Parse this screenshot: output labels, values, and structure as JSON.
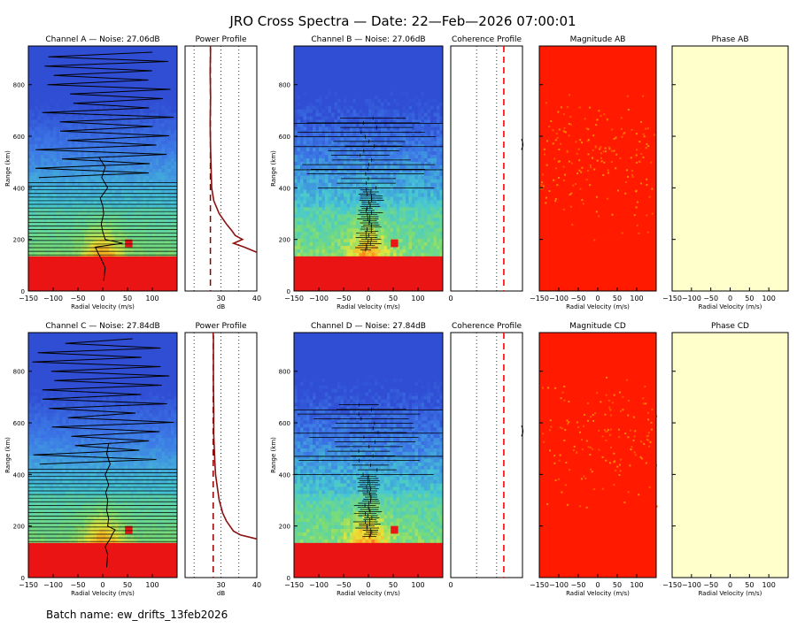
{
  "main_title": "JRO Cross Spectra — Date: 22—Feb—2026 07:00:01",
  "batch_name": "Batch name: ew_drifts_13feb2026",
  "colors": {
    "noise_line": "#8b0000",
    "profile": "#8b1010",
    "red": "#ff0000",
    "phase_bg": "#ffffcc"
  },
  "chart_data": [
    {
      "id": "spec_a",
      "type": "heatmap",
      "title": "Channel A — Noise: 27.06dB",
      "xlabel": "Radial Velocity (m/s)",
      "ylabel": "Range (km)",
      "xlim": [
        -150,
        150
      ],
      "ylim": [
        0,
        950
      ],
      "xticks": [
        "−150",
        "−100",
        "−50",
        "0",
        "50",
        "100"
      ],
      "yticks": [
        "0",
        "200",
        "400",
        "600",
        "800"
      ],
      "drift_line": {
        "range": [
          40,
          90,
          120,
          150,
          170,
          185,
          200,
          230,
          260,
          300,
          330,
          360,
          400,
          440,
          480,
          520
        ],
        "velocity": [
          2,
          5,
          -2,
          -10,
          -15,
          40,
          5,
          0,
          -3,
          2,
          0,
          -5,
          10,
          -2,
          5,
          -8
        ]
      }
    },
    {
      "id": "pow_a",
      "type": "line",
      "title": "Power Profile",
      "xlabel": "dB",
      "xlim": [
        20,
        40
      ],
      "ylim": [
        0,
        950
      ],
      "xticks": [
        "30",
        "40"
      ],
      "noise_level_db": 27.06,
      "profile": {
        "range": [
          150,
          170,
          185,
          200,
          215,
          235,
          260,
          300,
          350,
          400,
          450,
          550,
          650,
          750,
          850,
          940
        ],
        "db": [
          40,
          36.5,
          33.5,
          36,
          34,
          33,
          31.5,
          29.5,
          28,
          27.4,
          27.3,
          27.1,
          27.0,
          27.1,
          27.0,
          27.1
        ]
      }
    },
    {
      "id": "spec_b",
      "type": "heatmap",
      "title": "Channel B — Noise: 27.06dB",
      "xlabel": "Radial Velocity (m/s)",
      "ylabel": "Range (km)",
      "xlim": [
        -150,
        150
      ],
      "ylim": [
        0,
        950
      ],
      "xticks": [
        "−150",
        "−100",
        "−50",
        "0",
        "50",
        "100"
      ],
      "yticks": [
        "0",
        "200",
        "400",
        "600",
        "800"
      ]
    },
    {
      "id": "coh_ab",
      "type": "line",
      "title": "Coherence Profile",
      "xticks": [
        "0"
      ],
      "xlim": [
        0,
        1
      ],
      "ylim": [
        0,
        950
      ]
    },
    {
      "id": "mag_ab",
      "type": "heatmap",
      "title": "Magnitude AB",
      "xlabel": "Radial Velocity (m/s)",
      "xlim": [
        -150,
        150
      ],
      "ylim": [
        0,
        950
      ],
      "xticks": [
        "−150",
        "−100",
        "−50",
        "0",
        "50",
        "100"
      ]
    },
    {
      "id": "phase_ab",
      "type": "heatmap",
      "title": "Phase AB",
      "xlabel": "Radial Velocity (m/s)",
      "xlim": [
        -150,
        150
      ],
      "ylim": [
        0,
        950
      ],
      "xticks": [
        "−150",
        "−100",
        "−50",
        "0",
        "50",
        "100"
      ]
    },
    {
      "id": "spec_c",
      "type": "heatmap",
      "title": "Channel C — Noise: 27.84dB",
      "xlabel": "Radial Velocity (m/s)",
      "ylabel": "Range (km)",
      "xlim": [
        -150,
        150
      ],
      "ylim": [
        0,
        950
      ],
      "xticks": [
        "−150",
        "−100",
        "−50",
        "0",
        "50",
        "100"
      ],
      "yticks": [
        "0",
        "200",
        "400",
        "600",
        "800"
      ],
      "drift_line": {
        "range": [
          40,
          90,
          120,
          150,
          170,
          185,
          200,
          230,
          260,
          300,
          330,
          360,
          400,
          440,
          480,
          520
        ],
        "velocity": [
          8,
          10,
          5,
          15,
          20,
          25,
          10,
          12,
          8,
          10,
          6,
          12,
          5,
          15,
          8,
          12
        ]
      }
    },
    {
      "id": "pow_c",
      "type": "line",
      "title": "Power Profile",
      "xlabel": "dB",
      "xlim": [
        20,
        40
      ],
      "ylim": [
        0,
        950
      ],
      "xticks": [
        "30",
        "40"
      ],
      "noise_level_db": 27.84,
      "profile": {
        "range": [
          150,
          165,
          180,
          200,
          220,
          250,
          300,
          350,
          400,
          450,
          550,
          650,
          750,
          850,
          940
        ],
        "db": [
          40,
          35.5,
          33.5,
          32.5,
          31.5,
          30.5,
          29.5,
          29.0,
          28.5,
          28.3,
          28.0,
          28.0,
          27.9,
          27.9,
          27.9
        ]
      }
    },
    {
      "id": "spec_d",
      "type": "heatmap",
      "title": "Channel D — Noise: 27.84dB",
      "xlabel": "Radial Velocity (m/s)",
      "ylabel": "Range (km)",
      "xlim": [
        -150,
        150
      ],
      "ylim": [
        0,
        950
      ],
      "xticks": [
        "−150",
        "−100",
        "−50",
        "0",
        "50",
        "100"
      ],
      "yticks": [
        "0",
        "200",
        "400",
        "600",
        "800"
      ]
    },
    {
      "id": "coh_cd",
      "type": "line",
      "title": "Coherence Profile",
      "xticks": [
        "0"
      ],
      "xlim": [
        0,
        1
      ],
      "ylim": [
        0,
        950
      ]
    },
    {
      "id": "mag_cd",
      "type": "heatmap",
      "title": "Magnitude CD",
      "xlabel": "Radial Velocity (m/s)",
      "xlim": [
        -150,
        150
      ],
      "ylim": [
        0,
        950
      ],
      "xticks": [
        "−150",
        "−100",
        "−50",
        "0",
        "50",
        "100"
      ]
    },
    {
      "id": "phase_cd",
      "type": "heatmap",
      "title": "Phase CD",
      "xlabel": "Radial Velocity (m/s)",
      "xlim": [
        -150,
        150
      ],
      "ylim": [
        0,
        950
      ],
      "xticks": [
        "−150",
        "−100",
        "−50",
        "0",
        "50",
        "100"
      ]
    }
  ]
}
